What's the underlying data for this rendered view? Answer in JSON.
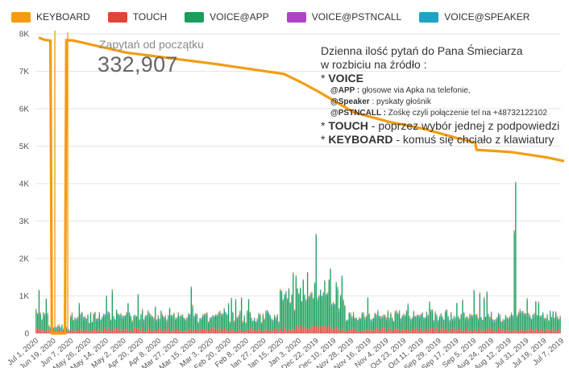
{
  "colors": {
    "keyboard": "#f39c12",
    "touch": "#e0453a",
    "voice_app": "#1a9e5a",
    "voice_pstn": "#b044c8",
    "voice_speaker": "#1fa3c2",
    "grid": "#e6e6e6",
    "axis_text": "#555555"
  },
  "legend": [
    {
      "label": "KEYBOARD",
      "color": "#f39c12"
    },
    {
      "label": "TOUCH",
      "color": "#e0453a"
    },
    {
      "label": "VOICE@APP",
      "color": "#1a9e5a"
    },
    {
      "label": "VOICE@PSTNCALL",
      "color": "#b044c8"
    },
    {
      "label": "VOICE@SPEAKER",
      "color": "#1fa3c2"
    }
  ],
  "kpi": {
    "label": "Zapytań od początku",
    "value": "332,907"
  },
  "note": {
    "line1": "Dzienna ilość pytań do Pana Śmieciarza",
    "line2": "w rozbiciu na źródło :",
    "voice_prefix": "* ",
    "voice_title": "VOICE",
    "app_key": "@APP :",
    "app_text": " głosowe via Apka na telefonie,",
    "speaker_key": "@Speaker",
    "speaker_text": " : pyskaty głośnik",
    "pstn_key": "@PSTNCALL :",
    "pstn_text": " Zośkę czyli połączenie tel na +48732122102",
    "touch_prefix": "* ",
    "touch_key": "TOUCH",
    "touch_text": " - poprzez wybór jednej z podpowiedzi",
    "keyboard_prefix": "* ",
    "keyboard_key": "KEYBOARD",
    "keyboard_text": " - komuś się chciało z klawiatury"
  },
  "chart_data": {
    "type": "bar",
    "stacked": true,
    "ylim": [
      0,
      8000
    ],
    "yticks": [
      {
        "value": 0,
        "label": "0"
      },
      {
        "value": 1000,
        "label": "1K"
      },
      {
        "value": 2000,
        "label": "2K"
      },
      {
        "value": 3000,
        "label": "3K"
      },
      {
        "value": 4000,
        "label": "4K"
      },
      {
        "value": 5000,
        "label": "5K"
      },
      {
        "value": 6000,
        "label": "6K"
      },
      {
        "value": 7000,
        "label": "7K"
      },
      {
        "value": 8000,
        "label": "8K"
      }
    ],
    "xticks": [
      "Jul 1, 2020",
      "Jun 19, 2020",
      "Jun 7, 2020",
      "May 26, 2020",
      "May 14, 2020",
      "May 2, 2020",
      "Apr 20, 2020",
      "Apr 8, 2020",
      "Mar 27, 2020",
      "Mar 15, 2020",
      "Mar 3, 2020",
      "Feb 20, 2020",
      "Feb 8, 2020",
      "Jan 27, 2020",
      "Jan 15, 2020",
      "Jan 3, 2020",
      "Dec 22, 2019",
      "Dec 10, 2019",
      "Nov 28, 2019",
      "Nov 16, 2019",
      "Nov 4, 2019",
      "Oct 23, 2019",
      "Oct 11, 2019",
      "Sep 29, 2019",
      "Sep 17, 2019",
      "Sep 5, 2019",
      "Aug 24, 2019",
      "Aug 12, 2019",
      "Jul 31, 2019",
      "Jul 19, 2019",
      "Jul 7, 2019"
    ],
    "daily_series": [
      {
        "name": "VOICE@APP",
        "peak_values": [
          {
            "day": 7,
            "value": 800
          },
          {
            "day": 195,
            "value": 2400
          },
          {
            "day": 205,
            "value": 1500
          },
          {
            "day": 334,
            "value": 3900
          },
          {
            "day": 333,
            "value": 2600
          },
          {
            "day": 108,
            "value": 1050
          },
          {
            "day": 170,
            "value": 1000
          },
          {
            "day": 305,
            "value": 1000
          }
        ],
        "typical_range": [
          200,
          600
        ]
      },
      {
        "name": "TOUCH",
        "typical_range": [
          40,
          220
        ]
      },
      {
        "name": "VOICE@SPEAKER",
        "typical_range": [
          0,
          120
        ]
      },
      {
        "name": "VOICE@PSTNCALL",
        "typical_range": [
          0,
          40
        ]
      },
      {
        "name": "KEYBOARD",
        "typical_range": [
          0,
          60
        ],
        "peak_values": [
          {
            "day": 13,
            "value": 7900
          },
          {
            "day": 22,
            "value": 7900
          }
        ]
      }
    ],
    "total_line": {
      "name": "Zapytań od początku (scaled)",
      "points": [
        {
          "x": "Jul 1, 2020",
          "y": 7900
        },
        {
          "x": "Jun 27, 2020",
          "y": 7840
        },
        {
          "x": "Jun 23, 2020",
          "y": 7820
        },
        {
          "x": "Jun 22, 2020",
          "y": 0
        },
        {
          "x": "Jun 13, 2020",
          "y": 0
        },
        {
          "x": "Jun 12, 2020",
          "y": 7830
        },
        {
          "x": "Jun 7, 2020",
          "y": 7820
        },
        {
          "x": "May 2, 2020",
          "y": 7500
        },
        {
          "x": "Mar 3, 2020",
          "y": 7200
        },
        {
          "x": "Jan 15, 2020",
          "y": 6930
        },
        {
          "x": "Jan 3, 2020",
          "y": 6700
        },
        {
          "x": "Dec 22, 2019",
          "y": 6450
        },
        {
          "x": "Nov 28, 2019",
          "y": 5900
        },
        {
          "x": "Nov 4, 2019",
          "y": 5650
        },
        {
          "x": "Oct 11, 2019",
          "y": 5460
        },
        {
          "x": "Sep 17, 2019",
          "y": 5200
        },
        {
          "x": "Sep 6, 2019",
          "y": 5100
        },
        {
          "x": "Sep 5, 2019",
          "y": 4900
        },
        {
          "x": "Aug 12, 2019",
          "y": 4840
        },
        {
          "x": "Jul 19, 2019",
          "y": 4700
        },
        {
          "x": "Jul 7, 2019",
          "y": 4600
        }
      ]
    }
  }
}
